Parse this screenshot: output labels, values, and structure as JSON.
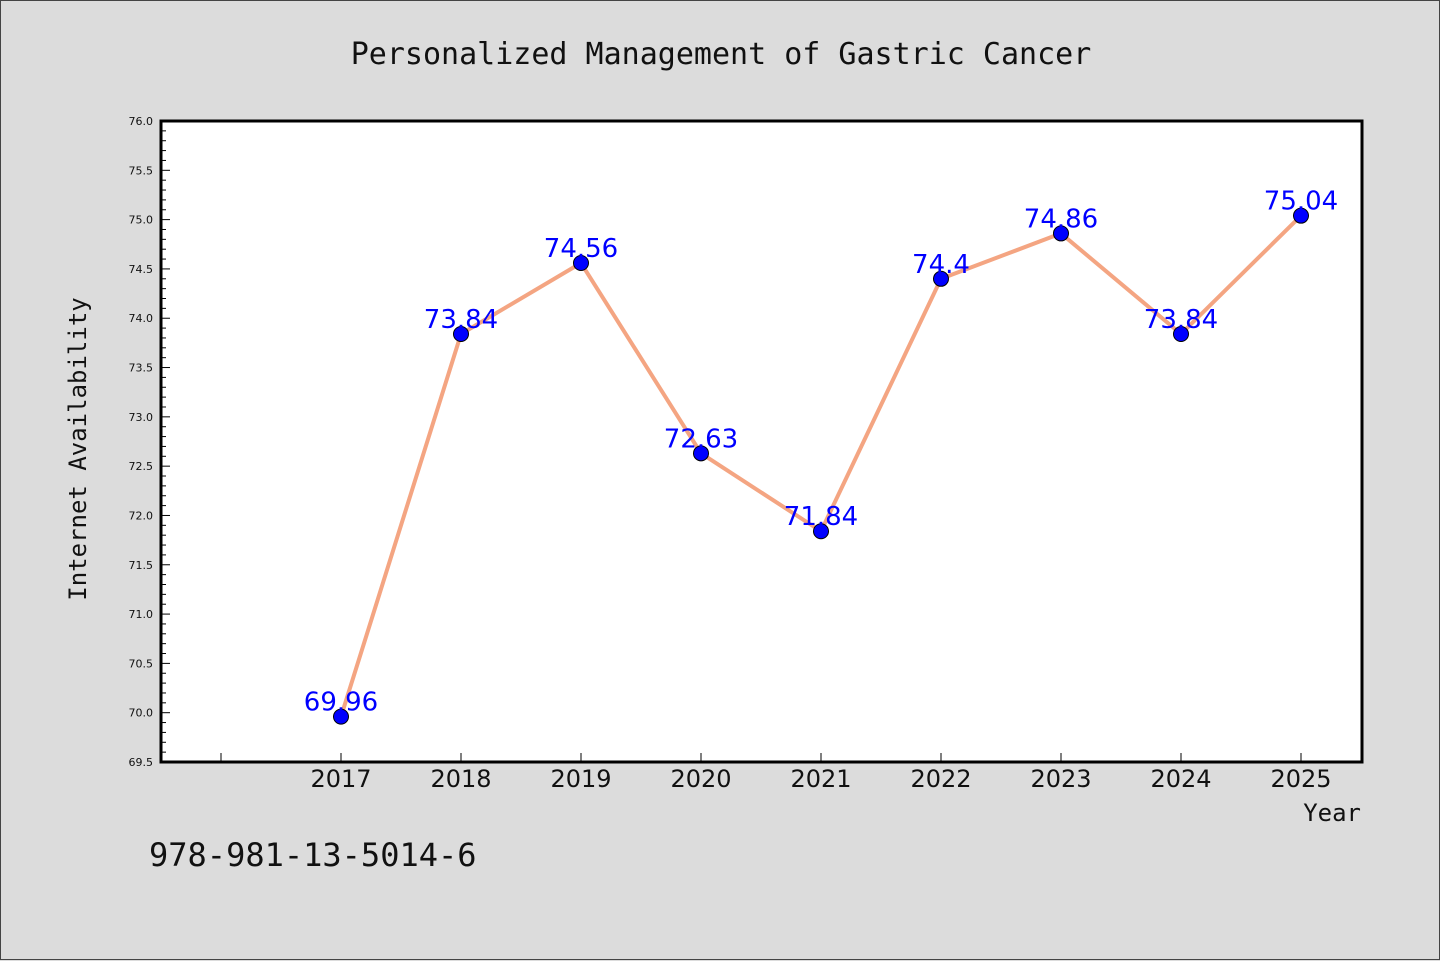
{
  "chart_data": {
    "type": "line",
    "title": "Personalized Management of Gastric Cancer",
    "xlabel": "Year",
    "ylabel": "Internet Availability",
    "categories": [
      "2017",
      "2018",
      "2019",
      "2020",
      "2021",
      "2022",
      "2023",
      "2024",
      "2025"
    ],
    "series": [
      {
        "values": [
          69.96,
          73.84,
          74.56,
          72.63,
          71.84,
          74.4,
          74.86,
          73.84,
          75.04
        ],
        "labels": [
          "69.96",
          "73.84",
          "74.56",
          "72.63",
          "71.84",
          "74.4",
          "74.86",
          "73.84",
          "75.04"
        ]
      }
    ],
    "ylim": [
      69.5,
      76.0
    ],
    "yticks": [
      "69.5",
      "70.0",
      "70.5",
      "71.0",
      "71.5",
      "72.0",
      "72.5",
      "73.0",
      "73.5",
      "74.0",
      "74.5",
      "75.0",
      "75.5",
      "76.0"
    ],
    "grid": false,
    "legend": "none",
    "colors": {
      "line": "#f4a582",
      "marker": "#0000ff",
      "data_label": "#0000ff",
      "background": "#dcdcdc",
      "plot_background": "#ffffff"
    }
  },
  "footer": {
    "isbn": "978-981-13-5014-6"
  }
}
